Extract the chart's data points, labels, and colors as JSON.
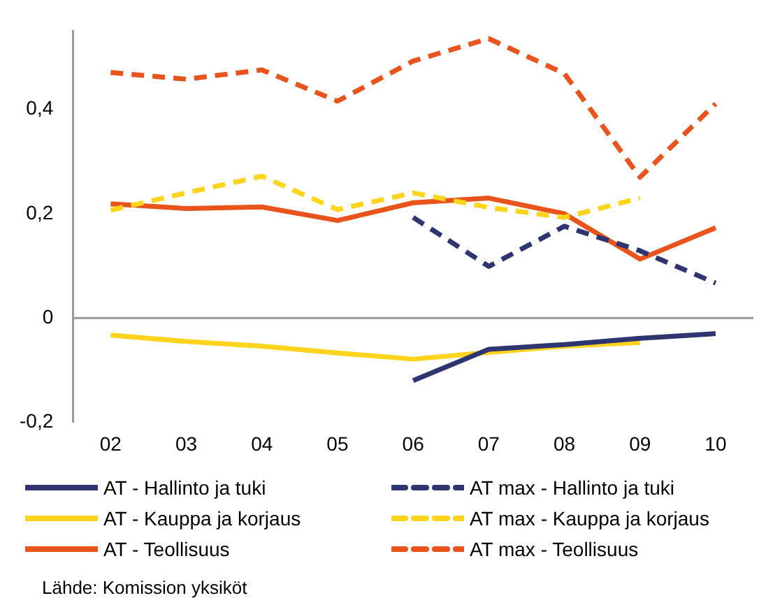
{
  "chart_data": {
    "type": "line",
    "categories": [
      "02",
      "03",
      "04",
      "05",
      "06",
      "07",
      "08",
      "09",
      "10"
    ],
    "ylim": [
      -0.2,
      0.55
    ],
    "yticks": [
      {
        "value": -0.2,
        "label": "-0,2"
      },
      0,
      {
        "value": 0.2,
        "label": "0,2"
      },
      {
        "value": 0.4,
        "label": "0,4"
      }
    ],
    "grid": false,
    "legend": "bottom",
    "marker": "none",
    "ref_lines": [
      {
        "axis": "y",
        "value": 0,
        "color": "#999999"
      }
    ],
    "series": [
      {
        "name": "AT - Hallinto ja tuki",
        "color": "#2e3570",
        "line_style": "solid",
        "values": [
          null,
          null,
          null,
          null,
          -0.12,
          -0.06,
          -0.051,
          -0.039,
          -0.03
        ]
      },
      {
        "name": "AT max - Hallinto ja tuki",
        "color": "#2e3570",
        "line_style": "dashed",
        "values": [
          null,
          null,
          null,
          null,
          0.193,
          0.099,
          0.176,
          0.129,
          0.067
        ]
      },
      {
        "name": "AT - Kauppa ja korjaus",
        "color": "#ffd41f",
        "line_style": "solid",
        "values": [
          -0.033,
          -0.045,
          -0.054,
          -0.067,
          -0.079,
          -0.066,
          -0.054,
          -0.047,
          null
        ]
      },
      {
        "name": "AT max - Kauppa ja korjaus",
        "color": "#ffd41f",
        "line_style": "dashed",
        "values": [
          0.207,
          0.24,
          0.272,
          0.208,
          0.24,
          0.212,
          0.193,
          0.23,
          null
        ]
      },
      {
        "name": "AT - Teollisuus",
        "color": "#e8541c",
        "line_style": "solid",
        "values": [
          0.219,
          0.21,
          0.213,
          0.187,
          0.221,
          0.23,
          0.2,
          0.113,
          0.173
        ]
      },
      {
        "name": "AT max - Teollisuus",
        "color": "#e8541c",
        "line_style": "dashed",
        "values": [
          0.471,
          0.458,
          0.476,
          0.416,
          0.493,
          0.536,
          0.469,
          0.27,
          0.411
        ]
      }
    ],
    "annotations": [
      "Lähde: Komission yksiköt"
    ]
  }
}
